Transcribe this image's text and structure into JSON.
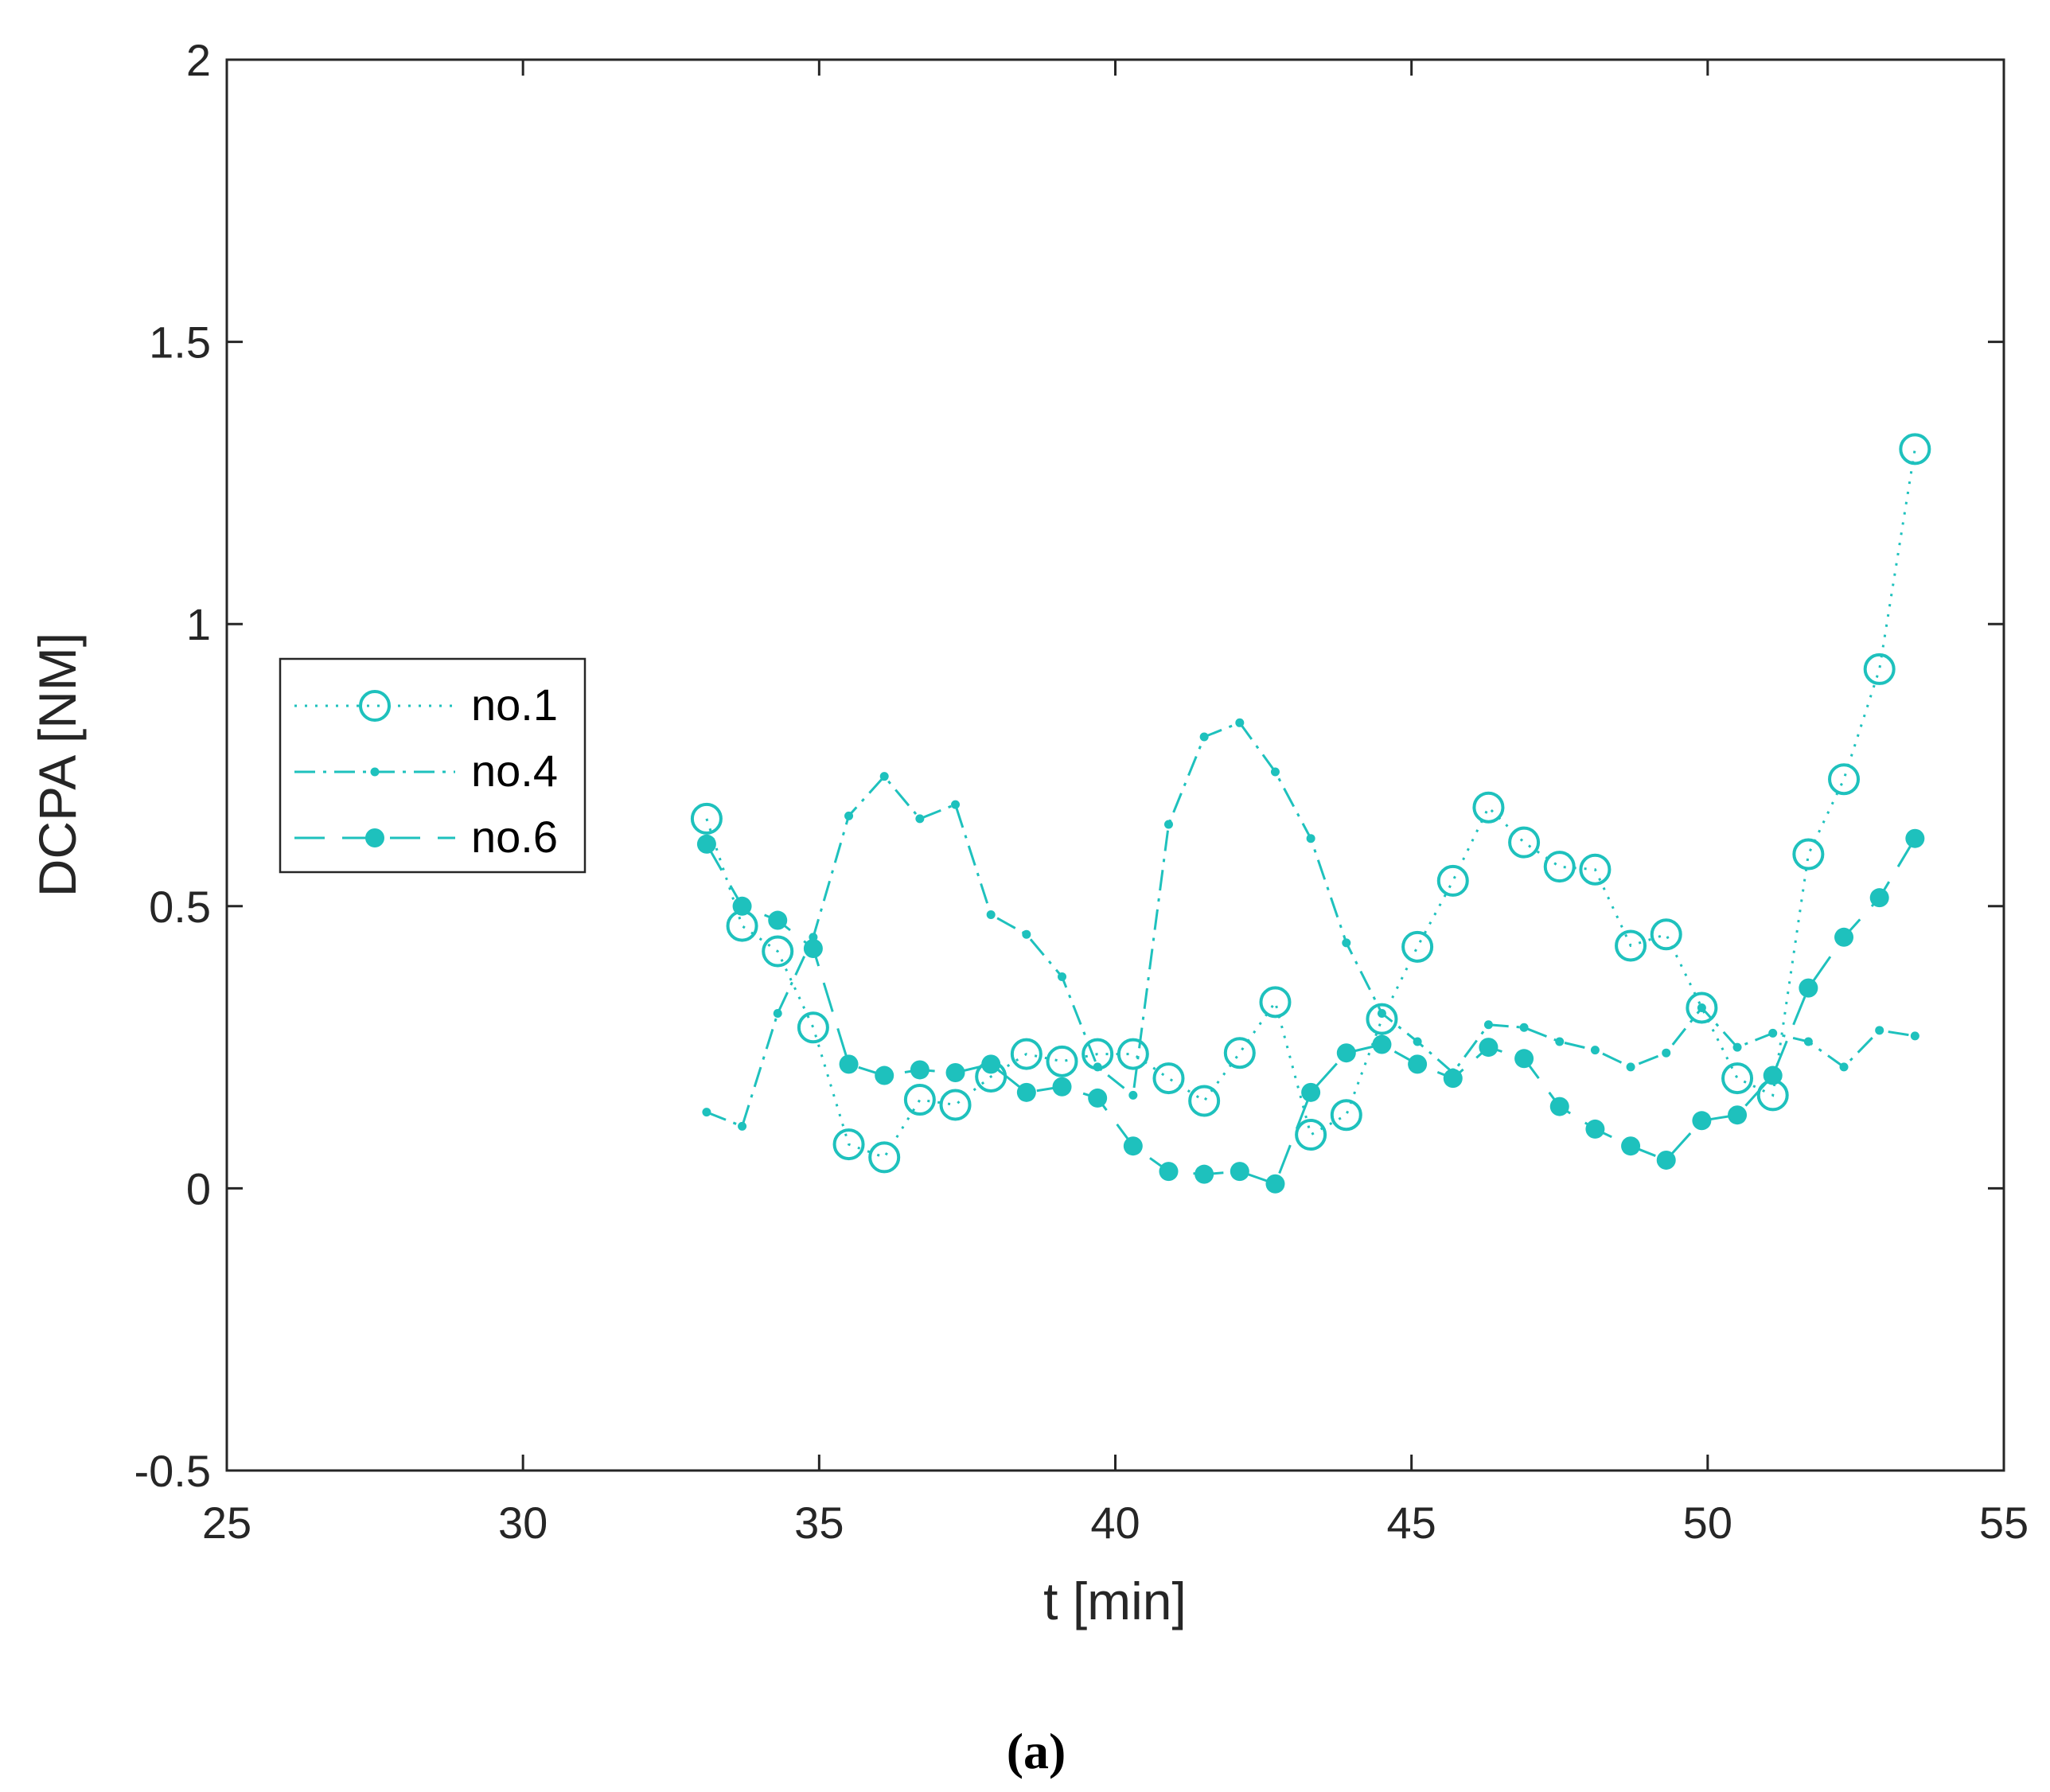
{
  "colors": {
    "series": "#1ec1bd",
    "axis": "#262626",
    "background": "#ffffff"
  },
  "panel_label": "(a)",
  "chart_data": {
    "type": "line",
    "title": "",
    "xlabel": "t [min]",
    "ylabel": "DCPA [NM]",
    "xlim": [
      25,
      55
    ],
    "ylim": [
      -0.5,
      2
    ],
    "xticks": [
      25,
      30,
      35,
      40,
      45,
      50,
      55
    ],
    "xtick_labels": [
      "25",
      "30",
      "35",
      "40",
      "45",
      "50",
      "55"
    ],
    "yticks": [
      -0.5,
      0,
      0.5,
      1,
      1.5,
      2
    ],
    "ytick_labels": [
      "-0.5",
      "0",
      "0.5",
      "1",
      "1.5",
      "2"
    ],
    "grid": false,
    "legend_position": "center-left",
    "x": [
      33.1,
      33.7,
      34.3,
      34.9,
      35.5,
      36.1,
      36.7,
      37.3,
      37.9,
      38.5,
      39.1,
      39.7,
      40.3,
      40.9,
      41.5,
      42.1,
      42.7,
      43.3,
      43.9,
      44.5,
      45.1,
      45.7,
      46.3,
      46.9,
      47.5,
      48.1,
      48.7,
      49.3,
      49.9,
      50.5,
      51.1,
      51.7,
      52.3,
      52.9,
      53.5
    ],
    "series": [
      {
        "name": "no.1",
        "style": "dotted",
        "marker": "open-circle",
        "values": [
          0.655,
          0.465,
          0.42,
          0.285,
          0.078,
          0.055,
          0.157,
          0.148,
          0.198,
          0.238,
          0.225,
          0.238,
          0.238,
          0.195,
          0.155,
          0.24,
          0.33,
          0.095,
          0.13,
          0.3,
          0.428,
          0.545,
          0.675,
          0.613,
          0.57,
          0.565,
          0.43,
          0.45,
          0.32,
          0.195,
          0.165,
          0.592,
          0.725,
          0.92,
          1.31
        ]
      },
      {
        "name": "no.4",
        "style": "dash-dot",
        "marker": "small-dot",
        "values": [
          0.135,
          0.11,
          0.31,
          0.445,
          0.66,
          0.73,
          0.655,
          0.68,
          0.485,
          0.45,
          0.375,
          0.215,
          0.165,
          0.645,
          0.8,
          0.825,
          0.738,
          0.62,
          0.435,
          0.31,
          0.26,
          0.205,
          0.29,
          0.285,
          0.26,
          0.245,
          0.215,
          0.24,
          0.32,
          0.25,
          0.275,
          0.26,
          0.215,
          0.28,
          0.27
        ]
      },
      {
        "name": "no.6",
        "style": "dashed",
        "marker": "filled-circle",
        "values": [
          0.61,
          0.5,
          0.475,
          0.425,
          0.22,
          0.2,
          0.21,
          0.205,
          0.22,
          0.17,
          0.18,
          0.16,
          0.075,
          0.03,
          0.025,
          0.03,
          0.008,
          0.17,
          0.24,
          0.255,
          0.22,
          0.195,
          0.25,
          0.23,
          0.145,
          0.105,
          0.075,
          0.05,
          0.12,
          0.13,
          0.2,
          0.355,
          0.445,
          0.515,
          0.62
        ]
      }
    ]
  }
}
